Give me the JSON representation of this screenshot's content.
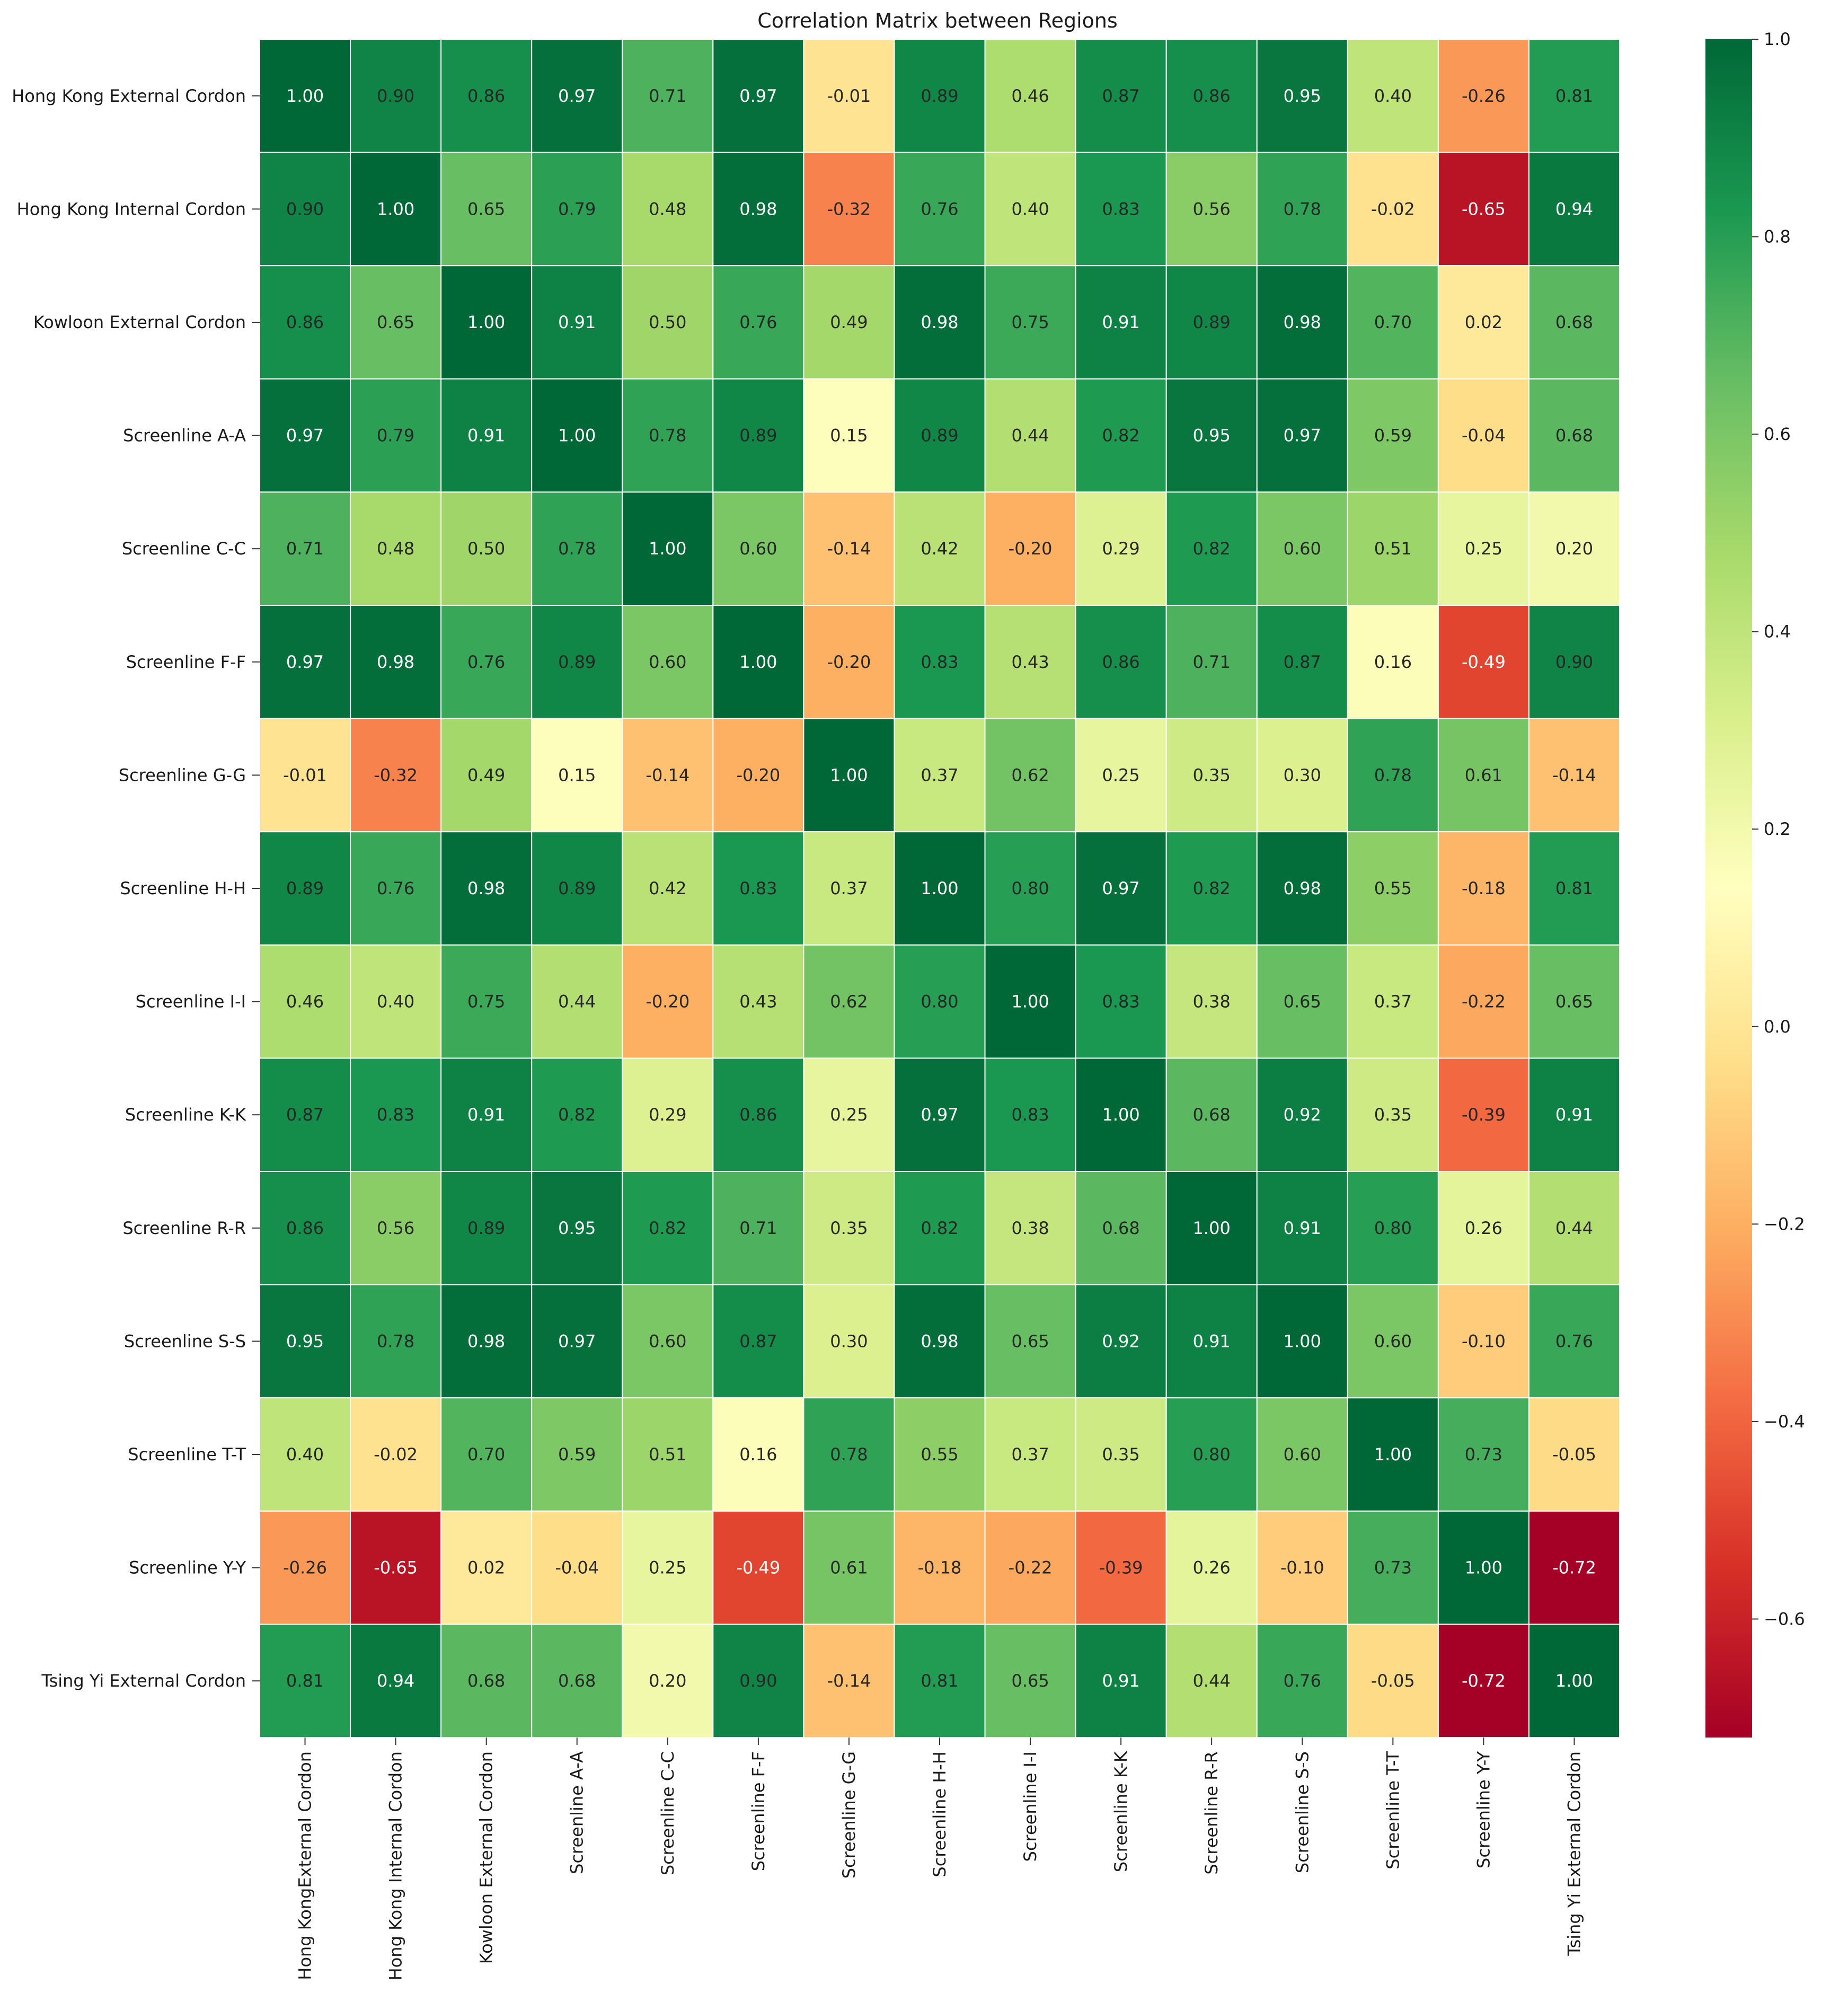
{
  "chart_data": {
    "type": "heatmap",
    "title": "Correlation Matrix between Regions",
    "xlabel": "",
    "ylabel": "",
    "row_labels": [
      "Hong Kong External Cordon",
      "Hong Kong Internal Cordon",
      "Kowloon External Cordon",
      "Screenline A-A",
      "Screenline C-C",
      "Screenline F-F",
      "Screenline G-G",
      "Screenline H-H",
      "Screenline I-I",
      "Screenline K-K",
      "Screenline R-R",
      "Screenline S-S",
      "Screenline T-T",
      "Screenline Y-Y",
      "Tsing Yi External Cordon"
    ],
    "column_labels": [
      "Hong KongExternal Cordon",
      "Hong Kong Internal Cordon",
      "Kowloon External Cordon",
      "Screenline A-A",
      "Screenline C-C",
      "Screenline F-F",
      "Screenline G-G",
      "Screenline H-H",
      "Screenline I-I",
      "Screenline K-K",
      "Screenline R-R",
      "Screenline S-S",
      "Screenline T-T",
      "Screenline Y-Y",
      "Tsing Yi External Cordon"
    ],
    "values": [
      [
        1.0,
        0.9,
        0.86,
        0.97,
        0.71,
        0.97,
        -0.01,
        0.89,
        0.46,
        0.87,
        0.86,
        0.95,
        0.4,
        -0.26,
        0.81
      ],
      [
        0.9,
        1.0,
        0.65,
        0.79,
        0.48,
        0.98,
        -0.32,
        0.76,
        0.4,
        0.83,
        0.56,
        0.78,
        -0.02,
        -0.65,
        0.94
      ],
      [
        0.86,
        0.65,
        1.0,
        0.91,
        0.5,
        0.76,
        0.49,
        0.98,
        0.75,
        0.91,
        0.89,
        0.98,
        0.7,
        0.02,
        0.68
      ],
      [
        0.97,
        0.79,
        0.91,
        1.0,
        0.78,
        0.89,
        0.15,
        0.89,
        0.44,
        0.82,
        0.95,
        0.97,
        0.59,
        -0.04,
        0.68
      ],
      [
        0.71,
        0.48,
        0.5,
        0.78,
        1.0,
        0.6,
        -0.14,
        0.42,
        -0.2,
        0.29,
        0.82,
        0.6,
        0.51,
        0.25,
        0.2
      ],
      [
        0.97,
        0.98,
        0.76,
        0.89,
        0.6,
        1.0,
        -0.2,
        0.83,
        0.43,
        0.86,
        0.71,
        0.87,
        0.16,
        -0.49,
        0.9
      ],
      [
        -0.01,
        -0.32,
        0.49,
        0.15,
        -0.14,
        -0.2,
        1.0,
        0.37,
        0.62,
        0.25,
        0.35,
        0.3,
        0.78,
        0.61,
        -0.14
      ],
      [
        0.89,
        0.76,
        0.98,
        0.89,
        0.42,
        0.83,
        0.37,
        1.0,
        0.8,
        0.97,
        0.82,
        0.98,
        0.55,
        -0.18,
        0.81
      ],
      [
        0.46,
        0.4,
        0.75,
        0.44,
        -0.2,
        0.43,
        0.62,
        0.8,
        1.0,
        0.83,
        0.38,
        0.65,
        0.37,
        -0.22,
        0.65
      ],
      [
        0.87,
        0.83,
        0.91,
        0.82,
        0.29,
        0.86,
        0.25,
        0.97,
        0.83,
        1.0,
        0.68,
        0.92,
        0.35,
        -0.39,
        0.91
      ],
      [
        0.86,
        0.56,
        0.89,
        0.95,
        0.82,
        0.71,
        0.35,
        0.82,
        0.38,
        0.68,
        1.0,
        0.91,
        0.8,
        0.26,
        0.44
      ],
      [
        0.95,
        0.78,
        0.98,
        0.97,
        0.6,
        0.87,
        0.3,
        0.98,
        0.65,
        0.92,
        0.91,
        1.0,
        0.6,
        -0.1,
        0.76
      ],
      [
        0.4,
        -0.02,
        0.7,
        0.59,
        0.51,
        0.16,
        0.78,
        0.55,
        0.37,
        0.35,
        0.8,
        0.6,
        1.0,
        0.73,
        -0.05
      ],
      [
        -0.26,
        -0.65,
        0.02,
        -0.04,
        0.25,
        -0.49,
        0.61,
        -0.18,
        -0.22,
        -0.39,
        0.26,
        -0.1,
        0.73,
        1.0,
        -0.72
      ],
      [
        0.81,
        0.94,
        0.68,
        0.68,
        0.2,
        0.9,
        -0.14,
        0.81,
        0.65,
        0.91,
        0.44,
        0.76,
        -0.05,
        -0.72,
        1.0
      ]
    ],
    "value_format": "2 decimals",
    "colormap": "RdYlGn",
    "vmin": -0.72,
    "vmax": 1.0,
    "colorbar_ticks": [
      1.0,
      0.8,
      0.6,
      0.4,
      0.2,
      0.0,
      -0.2,
      -0.4,
      -0.6
    ],
    "colorbar_tick_labels": [
      "1.0",
      "0.8",
      "0.6",
      "0.4",
      "0.2",
      "0.0",
      "−0.2",
      "−0.4",
      "−0.6"
    ],
    "colormap_stops": [
      "#a50026",
      "#d73027",
      "#f46d43",
      "#fdae61",
      "#fee08b",
      "#ffffbf",
      "#d9ef8b",
      "#a6d96a",
      "#66bd63",
      "#1a9850",
      "#006837"
    ],
    "legend": "colorbar right"
  }
}
